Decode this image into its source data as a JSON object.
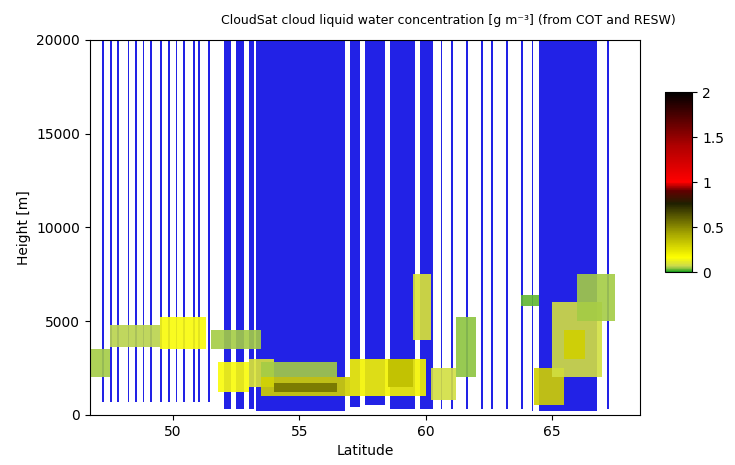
{
  "chart_data": {
    "type": "curtain",
    "title": "CloudSat cloud liquid water concentration [g m⁻³] (from COT and RESW)",
    "x_label": "Latitude",
    "y_label": "Height [m]",
    "xlim": [
      46.7,
      68.5
    ],
    "xticks": [
      50,
      55,
      60,
      65
    ],
    "ylim": [
      0,
      20000
    ],
    "yticks": [
      0,
      5000,
      10000,
      15000,
      20000
    ],
    "grid": false,
    "colorbar_lim": [
      0,
      2
    ],
    "colorbar_ticks": [
      0,
      0.5,
      1,
      1.5,
      2
    ],
    "profile_top": 20000,
    "profiles": [
      {
        "lat_from": 47.2,
        "lat_to": 47.27,
        "bottom": 700
      },
      {
        "lat_from": 47.5,
        "lat_to": 47.57,
        "bottom": 700
      },
      {
        "lat_from": 47.8,
        "lat_to": 47.87,
        "bottom": 700
      },
      {
        "lat_from": 48.2,
        "lat_to": 48.27,
        "bottom": 700
      },
      {
        "lat_from": 48.5,
        "lat_to": 48.57,
        "bottom": 700
      },
      {
        "lat_from": 48.8,
        "lat_to": 48.87,
        "bottom": 700
      },
      {
        "lat_from": 49.1,
        "lat_to": 49.17,
        "bottom": 700
      },
      {
        "lat_from": 49.5,
        "lat_to": 49.57,
        "bottom": 700
      },
      {
        "lat_from": 49.8,
        "lat_to": 49.87,
        "bottom": 700
      },
      {
        "lat_from": 50.1,
        "lat_to": 50.17,
        "bottom": 700
      },
      {
        "lat_from": 50.4,
        "lat_to": 50.47,
        "bottom": 700
      },
      {
        "lat_from": 50.8,
        "lat_to": 50.87,
        "bottom": 700
      },
      {
        "lat_from": 51.0,
        "lat_to": 51.07,
        "bottom": 700
      },
      {
        "lat_from": 51.4,
        "lat_to": 51.47,
        "bottom": 700
      },
      {
        "lat_from": 52.0,
        "lat_to": 52.3,
        "bottom": 300
      },
      {
        "lat_from": 52.5,
        "lat_to": 52.8,
        "bottom": 300
      },
      {
        "lat_from": 53.0,
        "lat_to": 53.2,
        "bottom": 300
      },
      {
        "lat_from": 53.3,
        "lat_to": 56.8,
        "bottom": 200
      },
      {
        "lat_from": 57.0,
        "lat_to": 57.4,
        "bottom": 400
      },
      {
        "lat_from": 57.6,
        "lat_to": 58.4,
        "bottom": 500
      },
      {
        "lat_from": 58.6,
        "lat_to": 59.6,
        "bottom": 300
      },
      {
        "lat_from": 59.8,
        "lat_to": 60.3,
        "bottom": 300
      },
      {
        "lat_from": 60.6,
        "lat_to": 60.67,
        "bottom": 300
      },
      {
        "lat_from": 61.0,
        "lat_to": 61.07,
        "bottom": 300
      },
      {
        "lat_from": 61.6,
        "lat_to": 61.67,
        "bottom": 300
      },
      {
        "lat_from": 62.2,
        "lat_to": 62.27,
        "bottom": 300
      },
      {
        "lat_from": 62.6,
        "lat_to": 62.67,
        "bottom": 300
      },
      {
        "lat_from": 63.2,
        "lat_to": 63.27,
        "bottom": 300
      },
      {
        "lat_from": 63.8,
        "lat_to": 63.87,
        "bottom": 300
      },
      {
        "lat_from": 64.2,
        "lat_to": 64.27,
        "bottom": 200
      },
      {
        "lat_from": 64.5,
        "lat_to": 66.8,
        "bottom": 200
      },
      {
        "lat_from": 67.2,
        "lat_to": 67.27,
        "bottom": 300
      }
    ],
    "cells": [
      {
        "lat_from": 46.7,
        "lat_to": 47.5,
        "bottom": 2000,
        "top": 3500,
        "value": 0.05
      },
      {
        "lat_from": 47.5,
        "lat_to": 49.5,
        "bottom": 3600,
        "top": 4800,
        "value": 0.06
      },
      {
        "lat_from": 49.5,
        "lat_to": 51.3,
        "bottom": 3500,
        "top": 5200,
        "value": 0.15
      },
      {
        "lat_from": 51.5,
        "lat_to": 53.5,
        "bottom": 3500,
        "top": 4500,
        "value": 0.05
      },
      {
        "lat_from": 51.8,
        "lat_to": 53.0,
        "bottom": 1200,
        "top": 2800,
        "value": 0.15
      },
      {
        "lat_from": 53.0,
        "lat_to": 54.0,
        "bottom": 1500,
        "top": 3000,
        "value": 0.1
      },
      {
        "lat_from": 53.5,
        "lat_to": 56.5,
        "bottom": 2000,
        "top": 2800,
        "value": 0.05
      },
      {
        "lat_from": 53.5,
        "lat_to": 57.0,
        "bottom": 1000,
        "top": 2000,
        "value": 0.3
      },
      {
        "lat_from": 54.0,
        "lat_to": 56.5,
        "bottom": 1200,
        "top": 1700,
        "value": 0.55
      },
      {
        "lat_from": 57.0,
        "lat_to": 60.0,
        "bottom": 1000,
        "top": 3000,
        "value": 0.2
      },
      {
        "lat_from": 58.5,
        "lat_to": 59.5,
        "bottom": 1500,
        "top": 3000,
        "value": 0.35
      },
      {
        "lat_from": 59.5,
        "lat_to": 60.2,
        "bottom": 4000,
        "top": 7500,
        "value": 0.1
      },
      {
        "lat_from": 60.2,
        "lat_to": 61.2,
        "bottom": 800,
        "top": 2500,
        "value": 0.08
      },
      {
        "lat_from": 61.2,
        "lat_to": 62.0,
        "bottom": 2000,
        "top": 5200,
        "value": 0.04
      },
      {
        "lat_from": 63.8,
        "lat_to": 64.5,
        "bottom": 5800,
        "top": 6400,
        "value": 0.03
      },
      {
        "lat_from": 64.3,
        "lat_to": 65.5,
        "bottom": 500,
        "top": 2500,
        "value": 0.3
      },
      {
        "lat_from": 65.0,
        "lat_to": 67.0,
        "bottom": 2000,
        "top": 6000,
        "value": 0.08
      },
      {
        "lat_from": 65.5,
        "lat_to": 66.3,
        "bottom": 3000,
        "top": 4500,
        "value": 0.3
      },
      {
        "lat_from": 66.0,
        "lat_to": 67.5,
        "bottom": 5000,
        "top": 7500,
        "value": 0.05
      }
    ]
  }
}
